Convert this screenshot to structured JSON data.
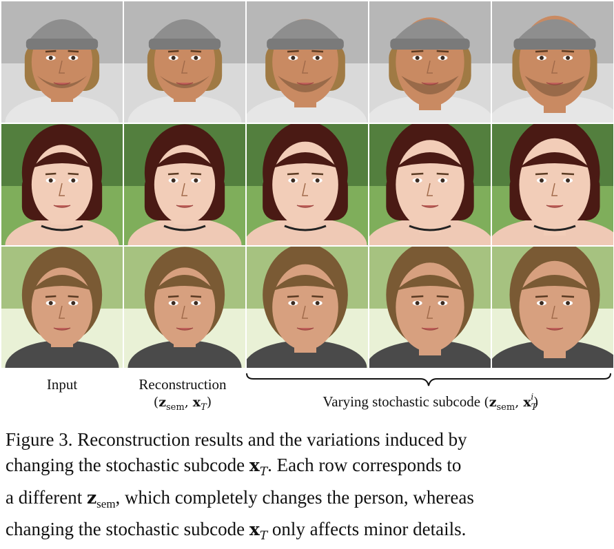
{
  "figure": {
    "label_input": "Input",
    "label_recon": "Reconstruction",
    "label_recon_math": [
      "z",
      "sem",
      "x",
      "T"
    ],
    "label_varying": "Varying stochastic subcode",
    "label_varying_math": [
      "z",
      "sem",
      "x",
      "T",
      "i"
    ]
  },
  "caption": {
    "line1": "Figure 3.  Reconstruction results and the variations induced by",
    "line2a": "changing the stochastic subcode",
    "line2b": ".  Each row corresponds to",
    "line3a": "a different",
    "line3b": ", which completely changes the person, whereas",
    "line4a": "changing the stochastic subcode",
    "line4b": "only affects minor details."
  }
}
